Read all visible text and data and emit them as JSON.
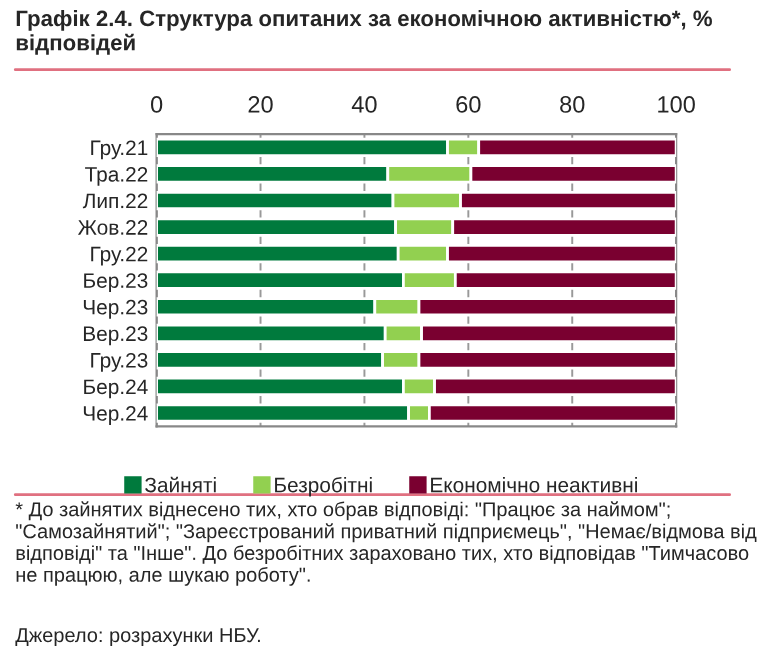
{
  "chart_data": {
    "type": "bar",
    "orientation": "horizontal",
    "stacked": true,
    "title": "Графік 2.4. Структура опитаних за економічною активністю*, % відповідей",
    "categories": [
      "Гру.21",
      "Тра.22",
      "Лип.22",
      "Жов.22",
      "Гру.22",
      "Бер.23",
      "Чер.23",
      "Вер.23",
      "Гру.23",
      "Бер.24",
      "Чер.24"
    ],
    "series": [
      {
        "name": "Зайняті",
        "color": "#007a3d",
        "values": [
          56,
          44.5,
          45.5,
          46,
          46.5,
          47.5,
          42,
          44,
          43.5,
          47.5,
          48.5
        ]
      },
      {
        "name": "Безробітні",
        "color": "#92d050",
        "values": [
          6,
          16,
          13,
          11,
          9.5,
          10,
          8.5,
          7,
          7,
          6,
          4
        ]
      },
      {
        "name": "Економічно неактивні",
        "color": "#7a0030",
        "values": [
          38,
          39.5,
          41.5,
          43,
          44,
          42.5,
          49.5,
          49,
          49.5,
          46.5,
          47.5
        ]
      }
    ],
    "xlim": [
      0,
      100
    ],
    "xticks": [
      0,
      20,
      40,
      60,
      80,
      100
    ],
    "grid": "x",
    "legend": "bottom",
    "annotations": [
      "* До зайнятих віднесено тих, хто обрав відповіді: \"Працює за наймом\"; \"Самозайнятий\"; \"Зареєстрований приватний підприємець\", \"Немає/відмова від відповіді\" та \"Інше\". До безробітних зараховано тих, хто відповідав \"Тимчасово не працюю, але шукаю роботу\".",
      "Джерело: розрахунки НБУ."
    ]
  }
}
